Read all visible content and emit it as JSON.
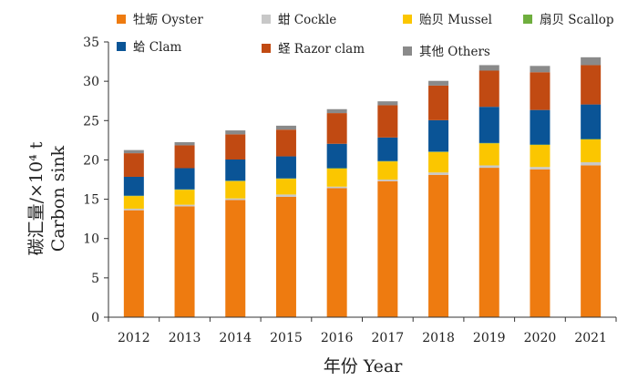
{
  "chart_data": {
    "type": "bar",
    "stacked": true,
    "xlabel": "年份 Year",
    "ylabel": "碳汇量/×10⁴ t",
    "ylabel2": "Carbon sink",
    "ylim": [
      0,
      35
    ],
    "yticks": [
      0,
      5,
      10,
      15,
      20,
      25,
      30,
      35
    ],
    "grid": false,
    "legend_position": "top",
    "categories": [
      "2012",
      "2013",
      "2014",
      "2015",
      "2016",
      "2017",
      "2018",
      "2019",
      "2020",
      "2021"
    ],
    "series": [
      {
        "name": "牡蛎 Oyster",
        "color": "#ee7b10",
        "values": [
          13.6,
          14.1,
          14.9,
          15.3,
          16.4,
          17.3,
          18.1,
          19.0,
          18.8,
          19.3
        ]
      },
      {
        "name": "蚶 Cockle",
        "color": "#c8c8c8",
        "values": [
          0.2,
          0.2,
          0.2,
          0.3,
          0.2,
          0.2,
          0.3,
          0.3,
          0.3,
          0.4
        ]
      },
      {
        "name": "贻贝 Mussel",
        "color": "#fbc600",
        "values": [
          1.6,
          1.9,
          2.2,
          2.0,
          2.3,
          2.3,
          2.6,
          2.8,
          2.8,
          2.9
        ]
      },
      {
        "name": "扇贝 Scallop",
        "color": "#6fae3e",
        "values": [
          0.05,
          0.05,
          0.05,
          0.05,
          0.05,
          0.05,
          0.05,
          0.05,
          0.05,
          0.05
        ]
      },
      {
        "name": "蛤 Clam",
        "color": "#0a5496",
        "values": [
          2.4,
          2.7,
          2.7,
          2.8,
          3.1,
          3.0,
          4.0,
          4.6,
          4.4,
          4.4
        ]
      },
      {
        "name": "蛏 Razor clam",
        "color": "#c14a12",
        "values": [
          3.0,
          2.9,
          3.2,
          3.4,
          3.9,
          4.1,
          4.4,
          4.6,
          4.8,
          5.0
        ]
      },
      {
        "name": "其他 Others",
        "color": "#8a8a8a",
        "values": [
          0.4,
          0.4,
          0.5,
          0.5,
          0.5,
          0.5,
          0.6,
          0.7,
          0.8,
          1.0
        ]
      }
    ]
  }
}
